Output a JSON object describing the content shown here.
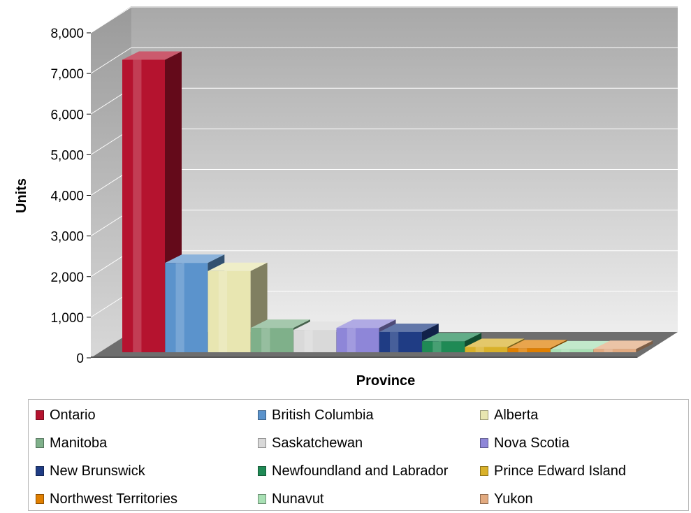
{
  "chart_data": {
    "type": "bar",
    "style": "3d",
    "xlabel": "Province",
    "ylabel": "Units",
    "ylim": [
      0,
      8000
    ],
    "yticks": [
      "0",
      "1,000",
      "2,000",
      "3,000",
      "4,000",
      "5,000",
      "6,000",
      "7,000",
      "8,000"
    ],
    "grid": true,
    "legend_position": "bottom",
    "categories": [
      "Ontario",
      "British Columbia",
      "Alberta",
      "Manitoba",
      "Saskatchewan",
      "Nova Scotia",
      "New Brunswick",
      "Newfoundland and Labrador",
      "Prince Edward Island",
      "Northwest Territories",
      "Nunavut",
      "Yukon"
    ],
    "values": [
      7200,
      2200,
      2000,
      600,
      550,
      600,
      500,
      270,
      130,
      100,
      70,
      80
    ],
    "colors": [
      "#b5132f",
      "#5b93cc",
      "#e8e6b1",
      "#7fb08a",
      "#d9d9d9",
      "#8e86d8",
      "#1f3c84",
      "#1f8a55",
      "#d9b12a",
      "#e07f00",
      "#a8e0b4",
      "#e2aa80"
    ]
  }
}
